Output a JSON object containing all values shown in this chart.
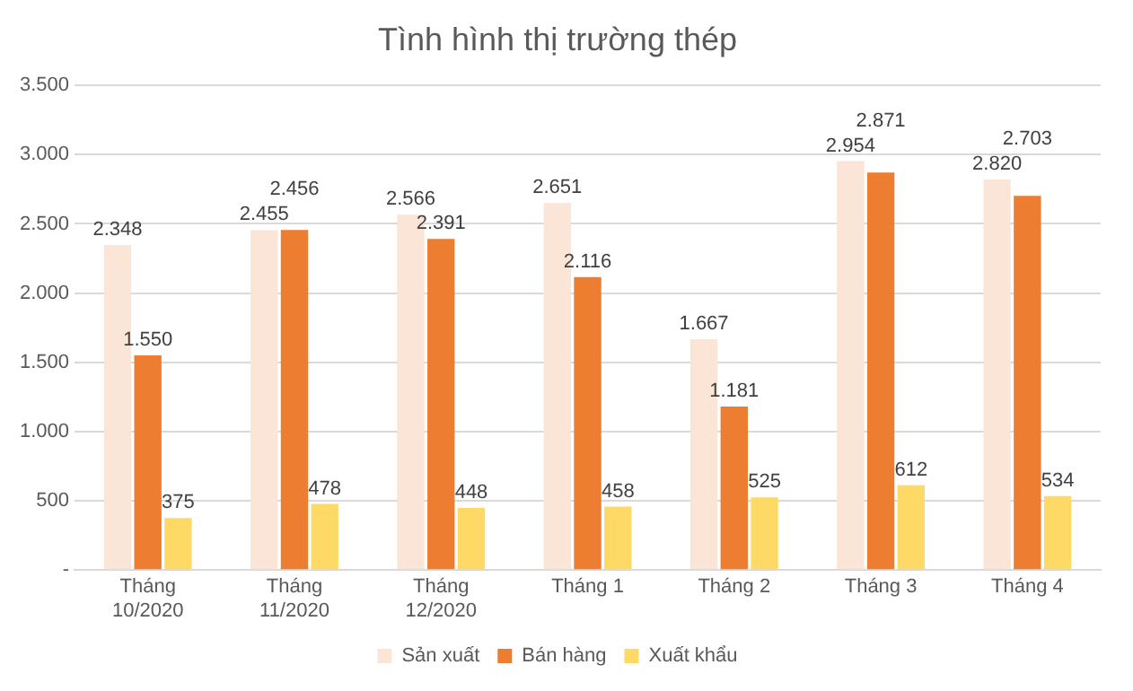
{
  "chart_data": {
    "type": "bar",
    "title": "Tình hình thị trường thép",
    "categories": [
      "Tháng 10/2020",
      "Tháng 11/2020",
      "Tháng 12/2020",
      "Tháng 1",
      "Tháng 2",
      "Tháng 3",
      "Tháng 4"
    ],
    "series": [
      {
        "name": "Sản xuất",
        "color": "#fbe5d6",
        "values": [
          2348,
          2455,
          2566,
          2651,
          1667,
          2954,
          2820
        ],
        "value_labels": [
          "2.348",
          "2.455",
          "2.566",
          "2.651",
          "1.667",
          "2.954",
          "2.820"
        ]
      },
      {
        "name": "Bán hàng",
        "color": "#ed7d31",
        "values": [
          1550,
          2456,
          2391,
          2116,
          1181,
          2871,
          2703
        ],
        "value_labels": [
          "1.550",
          "2.456",
          "2.391",
          "2.116",
          "1.181",
          "2.871",
          "2.703"
        ]
      },
      {
        "name": "Xuất khẩu",
        "color": "#ffd966",
        "values": [
          375,
          478,
          448,
          458,
          525,
          612,
          534
        ],
        "value_labels": [
          "375",
          "478",
          "448",
          "458",
          "525",
          "612",
          "534"
        ]
      }
    ],
    "ylim": [
      0,
      3500
    ],
    "yticks": [
      {
        "value": 0,
        "label": "-"
      },
      {
        "value": 500,
        "label": "500"
      },
      {
        "value": 1000,
        "label": "1.000"
      },
      {
        "value": 1500,
        "label": "1.500"
      },
      {
        "value": 2000,
        "label": "2.000"
      },
      {
        "value": 2500,
        "label": "2.500"
      },
      {
        "value": 3000,
        "label": "3.000"
      },
      {
        "value": 3500,
        "label": "3.500"
      }
    ],
    "grid": "y",
    "legend": "bottom"
  }
}
